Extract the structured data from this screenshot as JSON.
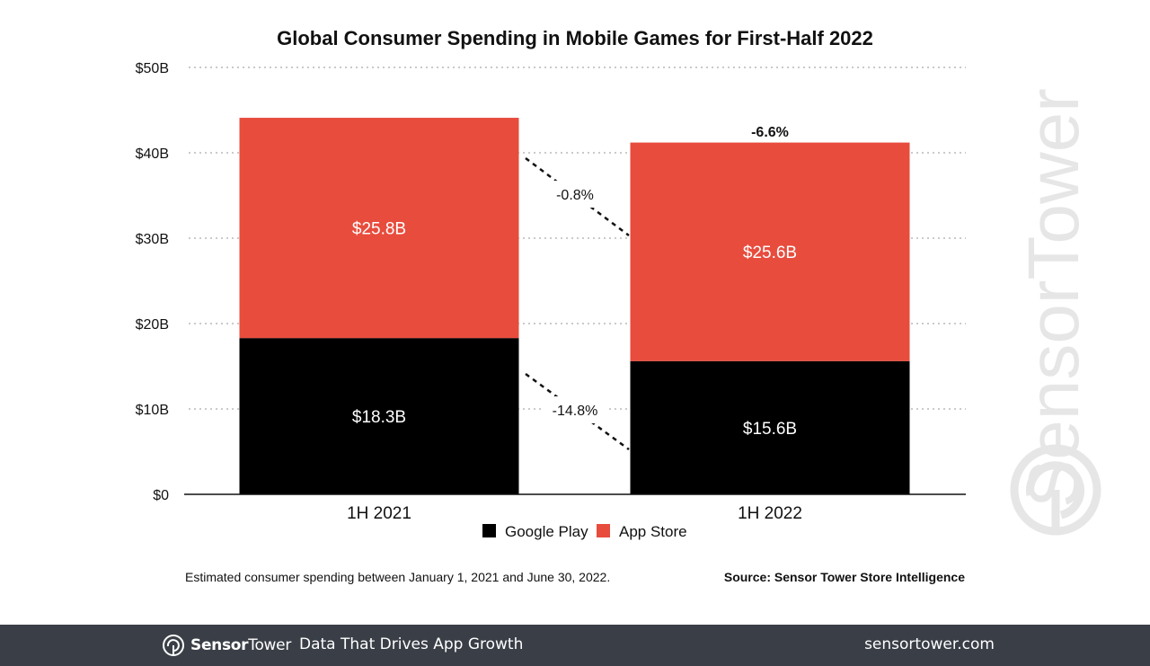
{
  "chart_data": {
    "type": "bar",
    "stacked": true,
    "title": "Global Consumer Spending in Mobile Games for First-Half 2022",
    "categories": [
      "1H 2021",
      "1H 2022"
    ],
    "series": [
      {
        "name": "Google Play",
        "color": "#000000",
        "values": [
          18.3,
          15.6
        ],
        "labels": [
          "$18.3B",
          "$15.6B"
        ]
      },
      {
        "name": "App Store",
        "color": "#e84c3d",
        "values": [
          25.8,
          25.6
        ],
        "labels": [
          "$25.8B",
          "$25.6B"
        ]
      }
    ],
    "ylim": [
      0,
      50
    ],
    "yticks": [
      0,
      10,
      20,
      30,
      40,
      50
    ],
    "ytick_labels": [
      "$0",
      "$10B",
      "$20B",
      "$30B",
      "$40B",
      "$50B"
    ],
    "grid": true,
    "legend_position": "bottom",
    "annotations": {
      "total_change": "-6.6%",
      "app_store_change": "-0.8%",
      "google_play_change": "-14.8%"
    }
  },
  "notes": {
    "left": "Estimated consumer spending between January 1, 2021 and June 30, 2022.",
    "source": "Source: Sensor Tower Store Intelligence"
  },
  "watermark": {
    "text": "SensorTower",
    "icon": "sensor-tower-logo-icon"
  },
  "footer": {
    "brand_sensor": "Sensor",
    "brand_tower": "Tower",
    "tagline": "Data That Drives App Growth",
    "url": "sensortower.com",
    "background": "#3a3f47"
  }
}
